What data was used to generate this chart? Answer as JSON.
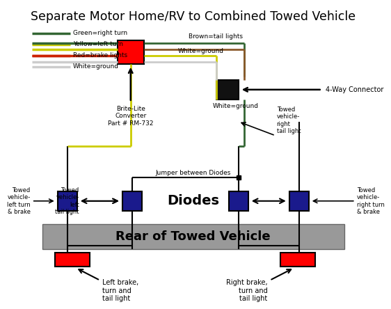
{
  "title": "Separate Motor Home/RV to Combined Towed Vehicle",
  "bg_color": "#ffffff",
  "title_fontsize": 12,
  "wire_colors": {
    "green": "#336633",
    "yellow": "#cccc00",
    "red": "#cc2200",
    "white": "#cccccc",
    "brown": "#8B5A2B",
    "black": "#000000"
  },
  "legend_lines": [
    [
      "Green=right turn",
      "#336633"
    ],
    [
      "Yellow=left turn",
      "#cccc00"
    ],
    [
      "Red=brake lights",
      "#cc2200"
    ],
    [
      "White=ground",
      "#cccccc"
    ]
  ],
  "labels": {
    "brite_lite": "Brite-Lite\nConverter\nPart # RM-732",
    "four_way": "4-Way Connector",
    "brown_label": "Brown=tail lights",
    "white_ground1": "White=ground",
    "white_ground2": "White=ground",
    "diodes": "Diodes",
    "jumper": "Jumper between Diodes",
    "rear_bar": "Rear of Towed Vehicle",
    "towed_left_turn": "Towed\nvehicle-\nleft turn\n& brake",
    "towed_left_tail": "Towed\nvehicle-\nleft\ntail light",
    "towed_right_tail": "Towed\nvehicle-\nright\ntail light",
    "towed_right_turn": "Towed\nvehicle-\nright turn\n& brake",
    "left_brake": "Left brake,\nturn and\ntail light",
    "right_brake": "Right brake,\nturn and\ntail light"
  }
}
